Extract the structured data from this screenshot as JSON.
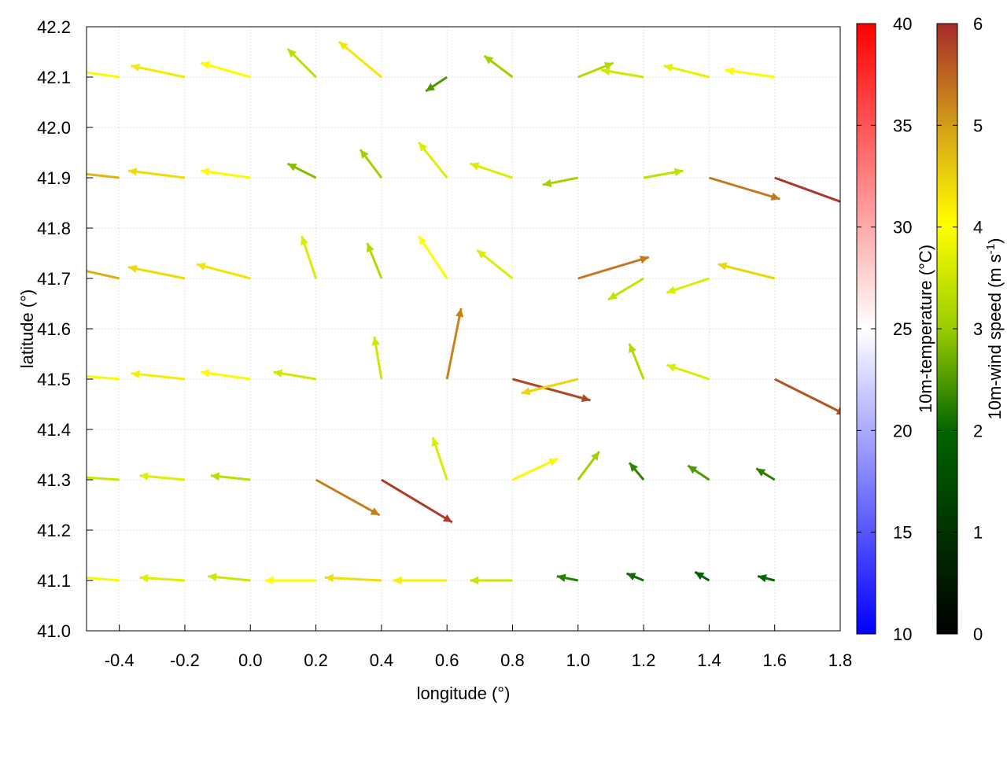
{
  "chart_data": {
    "type": "vector-field",
    "xlabel": "longitude (°)",
    "ylabel": "latitude (°)",
    "xlim": [
      -0.5,
      1.8
    ],
    "ylim": [
      41.0,
      42.2
    ],
    "xticks": [
      "-0.4",
      "-0.2",
      "0.0",
      "0.2",
      "0.4",
      "0.6",
      "0.8",
      "1.0",
      "1.2",
      "1.4",
      "1.6",
      "1.8"
    ],
    "yticks": [
      "41.0",
      "41.1",
      "41.2",
      "41.3",
      "41.4",
      "41.5",
      "41.6",
      "41.7",
      "41.8",
      "41.9",
      "42.0",
      "42.1",
      "42.2"
    ],
    "grid": true,
    "colorbars": [
      {
        "label": "10m-temperature (°C)",
        "range": [
          10,
          40
        ],
        "ticks": [
          "10",
          "15",
          "20",
          "25",
          "30",
          "35",
          "40"
        ],
        "colors": [
          "#0000ff",
          "#ffffff",
          "#ff0000"
        ]
      },
      {
        "label": "10m-wind speed (m s-1)",
        "label_main": "10m-wind speed (m s",
        "label_sup": "-1",
        "label_end": ")",
        "range": [
          0,
          6
        ],
        "ticks": [
          "0",
          "1",
          "2",
          "3",
          "4",
          "5",
          "6"
        ],
        "colors": [
          "#000000",
          "#006400",
          "#9acd00",
          "#ffff00",
          "#d4a017",
          "#a52a2a"
        ]
      }
    ],
    "vectors": {
      "units": "m s-1",
      "lons": [
        -0.4,
        -0.2,
        0.0,
        0.2,
        0.4,
        0.6,
        0.8,
        1.0,
        1.2,
        1.4,
        1.6
      ],
      "lats": [
        41.1,
        41.3,
        41.5,
        41.7,
        41.9,
        42.1
      ],
      "uv": [
        [
          [
            -3.5,
            0.3
          ],
          [
            -3.2,
            0.2
          ],
          [
            -3,
            0.3
          ],
          [
            -3.6,
            0
          ],
          [
            -4,
            0.2
          ],
          [
            -3.8,
            0
          ],
          [
            -3,
            0
          ],
          [
            -1.5,
            0.3
          ],
          [
            -1.2,
            0.5
          ],
          [
            -1,
            0.6
          ],
          [
            -1.2,
            0.3
          ]
        ],
        [
          [
            -3,
            0.2
          ],
          [
            -3.2,
            0.3
          ],
          [
            -2.8,
            0.3
          ],
          [
            4.5,
            -2.5
          ],
          [
            5,
            -3
          ],
          [
            -1,
            3
          ],
          [
            3.2,
            1.5
          ],
          [
            1.5,
            2
          ],
          [
            -1,
            1.2
          ],
          [
            -1.5,
            1
          ],
          [
            -1.3,
            0.8
          ]
        ],
        [
          [
            -3.5,
            0.3
          ],
          [
            -3.8,
            0.4
          ],
          [
            -3.5,
            0.5
          ],
          [
            -3,
            0.5
          ],
          [
            -0.5,
            3
          ],
          [
            1,
            5
          ],
          [
            5.5,
            -1.5
          ],
          [
            -4,
            -1
          ],
          [
            -1,
            2.5
          ],
          [
            -3,
            1
          ],
          [
            5,
            -2.5
          ]
        ],
        [
          [
            -4.5,
            1
          ],
          [
            -4,
            0.8
          ],
          [
            -3.8,
            1
          ],
          [
            -1,
            3
          ],
          [
            -1,
            2.5
          ],
          [
            -2,
            3
          ],
          [
            -2.5,
            2
          ],
          [
            5,
            1.5
          ],
          [
            -2.5,
            -1.5
          ],
          [
            -3,
            -1
          ],
          [
            -4,
            1
          ]
        ],
        [
          [
            -4.5,
            0.5
          ],
          [
            -4,
            0.5
          ],
          [
            -3.5,
            0.5
          ],
          [
            -2,
            1
          ],
          [
            -1.5,
            2
          ],
          [
            -2,
            2.5
          ],
          [
            -3,
            1
          ],
          [
            -2.5,
            -0.5
          ],
          [
            2.8,
            0.5
          ],
          [
            5,
            -1.5
          ],
          [
            5.5,
            -2
          ]
        ],
        [
          [
            -3.5,
            0.5
          ],
          [
            -3.8,
            0.8
          ],
          [
            -3.5,
            1
          ],
          [
            -2,
            2
          ],
          [
            -3,
            2.5
          ],
          [
            -1.5,
            -1
          ],
          [
            -2,
            1.5
          ],
          [
            2.5,
            1
          ],
          [
            -3,
            0.5
          ],
          [
            -3.2,
            0.8
          ],
          [
            -3.5,
            0.5
          ]
        ]
      ]
    }
  }
}
